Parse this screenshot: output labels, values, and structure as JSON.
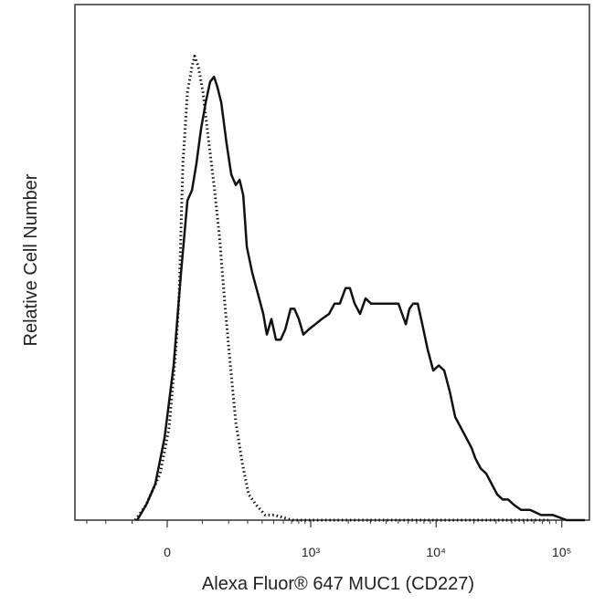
{
  "chart_data": {
    "type": "line",
    "xlabel": "Alexa Fluor® 647 MUC1 (CD227)",
    "ylabel": "Relative Cell Number",
    "xscale": {
      "type": "arcsinh",
      "cofactor": 145
    },
    "xlim": [
      -380,
      166000
    ],
    "ylim": [
      0,
      100
    ],
    "xticks": [
      0,
      {
        "value": 1000,
        "label": "10³"
      },
      {
        "value": 10000,
        "label": "10⁴"
      },
      {
        "value": 100000,
        "label": "10⁵"
      }
    ],
    "xminorticks": [
      -300,
      -200,
      -100,
      100,
      200,
      300,
      400,
      500,
      600,
      700,
      800,
      900,
      2000,
      3000,
      4000,
      5000,
      6000,
      7000,
      8000,
      9000,
      20000,
      30000,
      40000,
      50000,
      60000,
      70000,
      80000,
      90000
    ],
    "series": [
      {
        "color": "#111111",
        "line_style": "solid",
        "x": [
          -84,
          -57,
          -32,
          -7,
          17,
          37,
          55,
          68,
          81,
          96,
          111,
          126,
          140,
          153,
          168,
          191,
          212,
          234,
          254,
          274,
          295,
          329,
          367,
          409,
          438,
          478,
          522,
          570,
          622,
          688,
          737,
          802,
          873,
          967,
          1090,
          1227,
          1404,
          1551,
          1711,
          1900,
          2059,
          2248,
          2480,
          2741,
          3031,
          3364,
          3843,
          4394,
          5017,
          5365,
          5742,
          6134,
          6569,
          7134,
          7758,
          8584,
          9483,
          10498,
          11600,
          12833,
          14181,
          15689,
          17342,
          19184,
          20503,
          22678,
          25071,
          27724,
          30653,
          33887,
          37483,
          41427,
          47372,
          56014,
          68484,
          85115,
          109475,
          152830
        ],
        "values": [
          0,
          3,
          7,
          16,
          30,
          48,
          62,
          64,
          69,
          76,
          81,
          85,
          86,
          84,
          81,
          73,
          67,
          65,
          66,
          63,
          53,
          48,
          44,
          40,
          36,
          39,
          35,
          35,
          37,
          41,
          41,
          39,
          36,
          37,
          38,
          39,
          40,
          42,
          42,
          45,
          45,
          42,
          40,
          43,
          42,
          42,
          42,
          42,
          42,
          40,
          38,
          41,
          42,
          42,
          38,
          33,
          29,
          30,
          29,
          25,
          20,
          18,
          16,
          14,
          12,
          10,
          9,
          7,
          5,
          4,
          4,
          3,
          2,
          2,
          1,
          1,
          0,
          0
        ]
      },
      {
        "color": "#111111",
        "line_style": "dotted",
        "x": [
          -90,
          -57,
          -19,
          5,
          17,
          24,
          32,
          42,
          55,
          68,
          76,
          87,
          102,
          120,
          140,
          161,
          183,
          208,
          234,
          269,
          306,
          354,
          424,
          504,
          712,
          2741,
          78300
        ],
        "values": [
          0,
          3,
          9,
          18,
          28,
          34,
          44,
          69,
          83,
          88,
          90,
          88,
          83,
          74,
          65,
          55,
          42,
          30,
          19,
          11,
          5,
          3,
          1,
          1,
          0,
          0,
          0
        ]
      }
    ]
  }
}
